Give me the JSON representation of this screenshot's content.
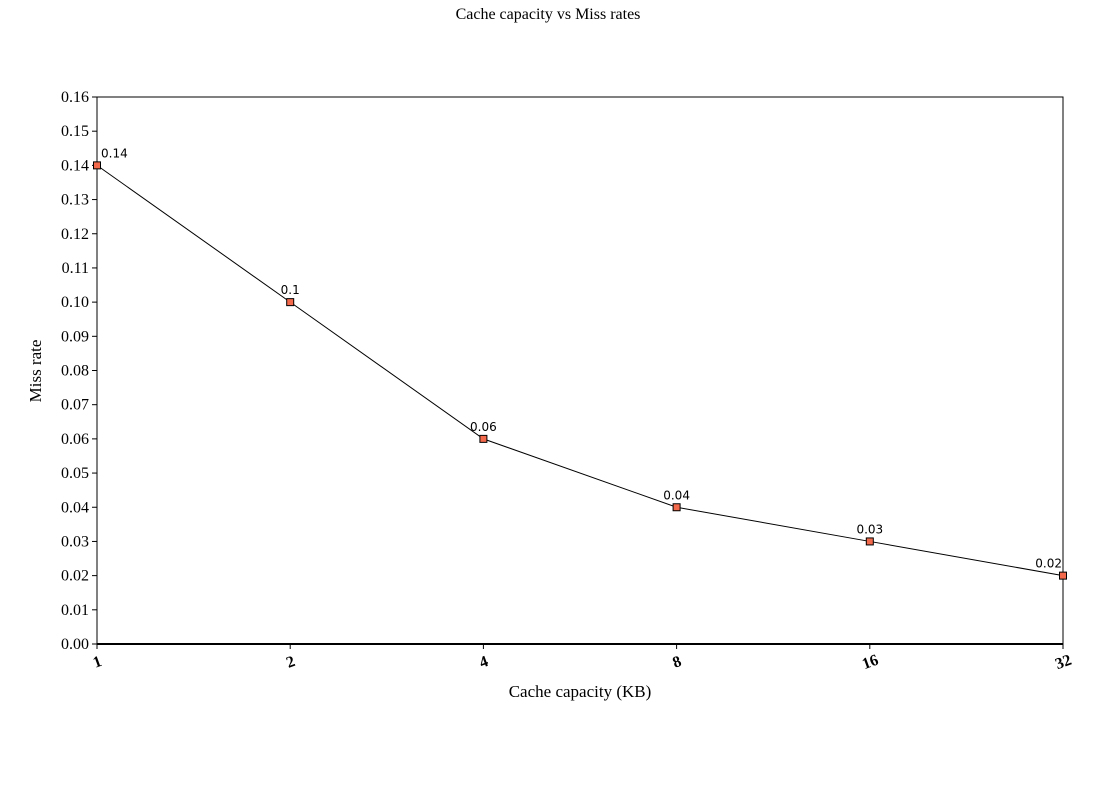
{
  "chart_data": {
    "type": "line",
    "title": "Cache capacity vs Miss rates",
    "xlabel": "Cache capacity (KB)",
    "ylabel": "Miss rate",
    "categories": [
      "1",
      "2",
      "4",
      "8",
      "16",
      "32"
    ],
    "series": [
      {
        "values": [
          0.14,
          0.1,
          0.06,
          0.04,
          0.03,
          0.02
        ]
      }
    ],
    "data_labels": [
      "0.14",
      "0.1",
      "0.06",
      "0.04",
      "0.03",
      "0.02"
    ],
    "ylim": [
      0,
      0.16
    ],
    "yticks": [
      "0.00",
      "0.01",
      "0.02",
      "0.03",
      "0.04",
      "0.05",
      "0.06",
      "0.07",
      "0.08",
      "0.09",
      "0.10",
      "0.11",
      "0.12",
      "0.13",
      "0.14",
      "0.15",
      "0.16"
    ],
    "grid": false,
    "legend": "none",
    "colors": {
      "line": "#000000",
      "marker_fill": "#f26a4b",
      "marker_stroke": "#000000"
    }
  }
}
